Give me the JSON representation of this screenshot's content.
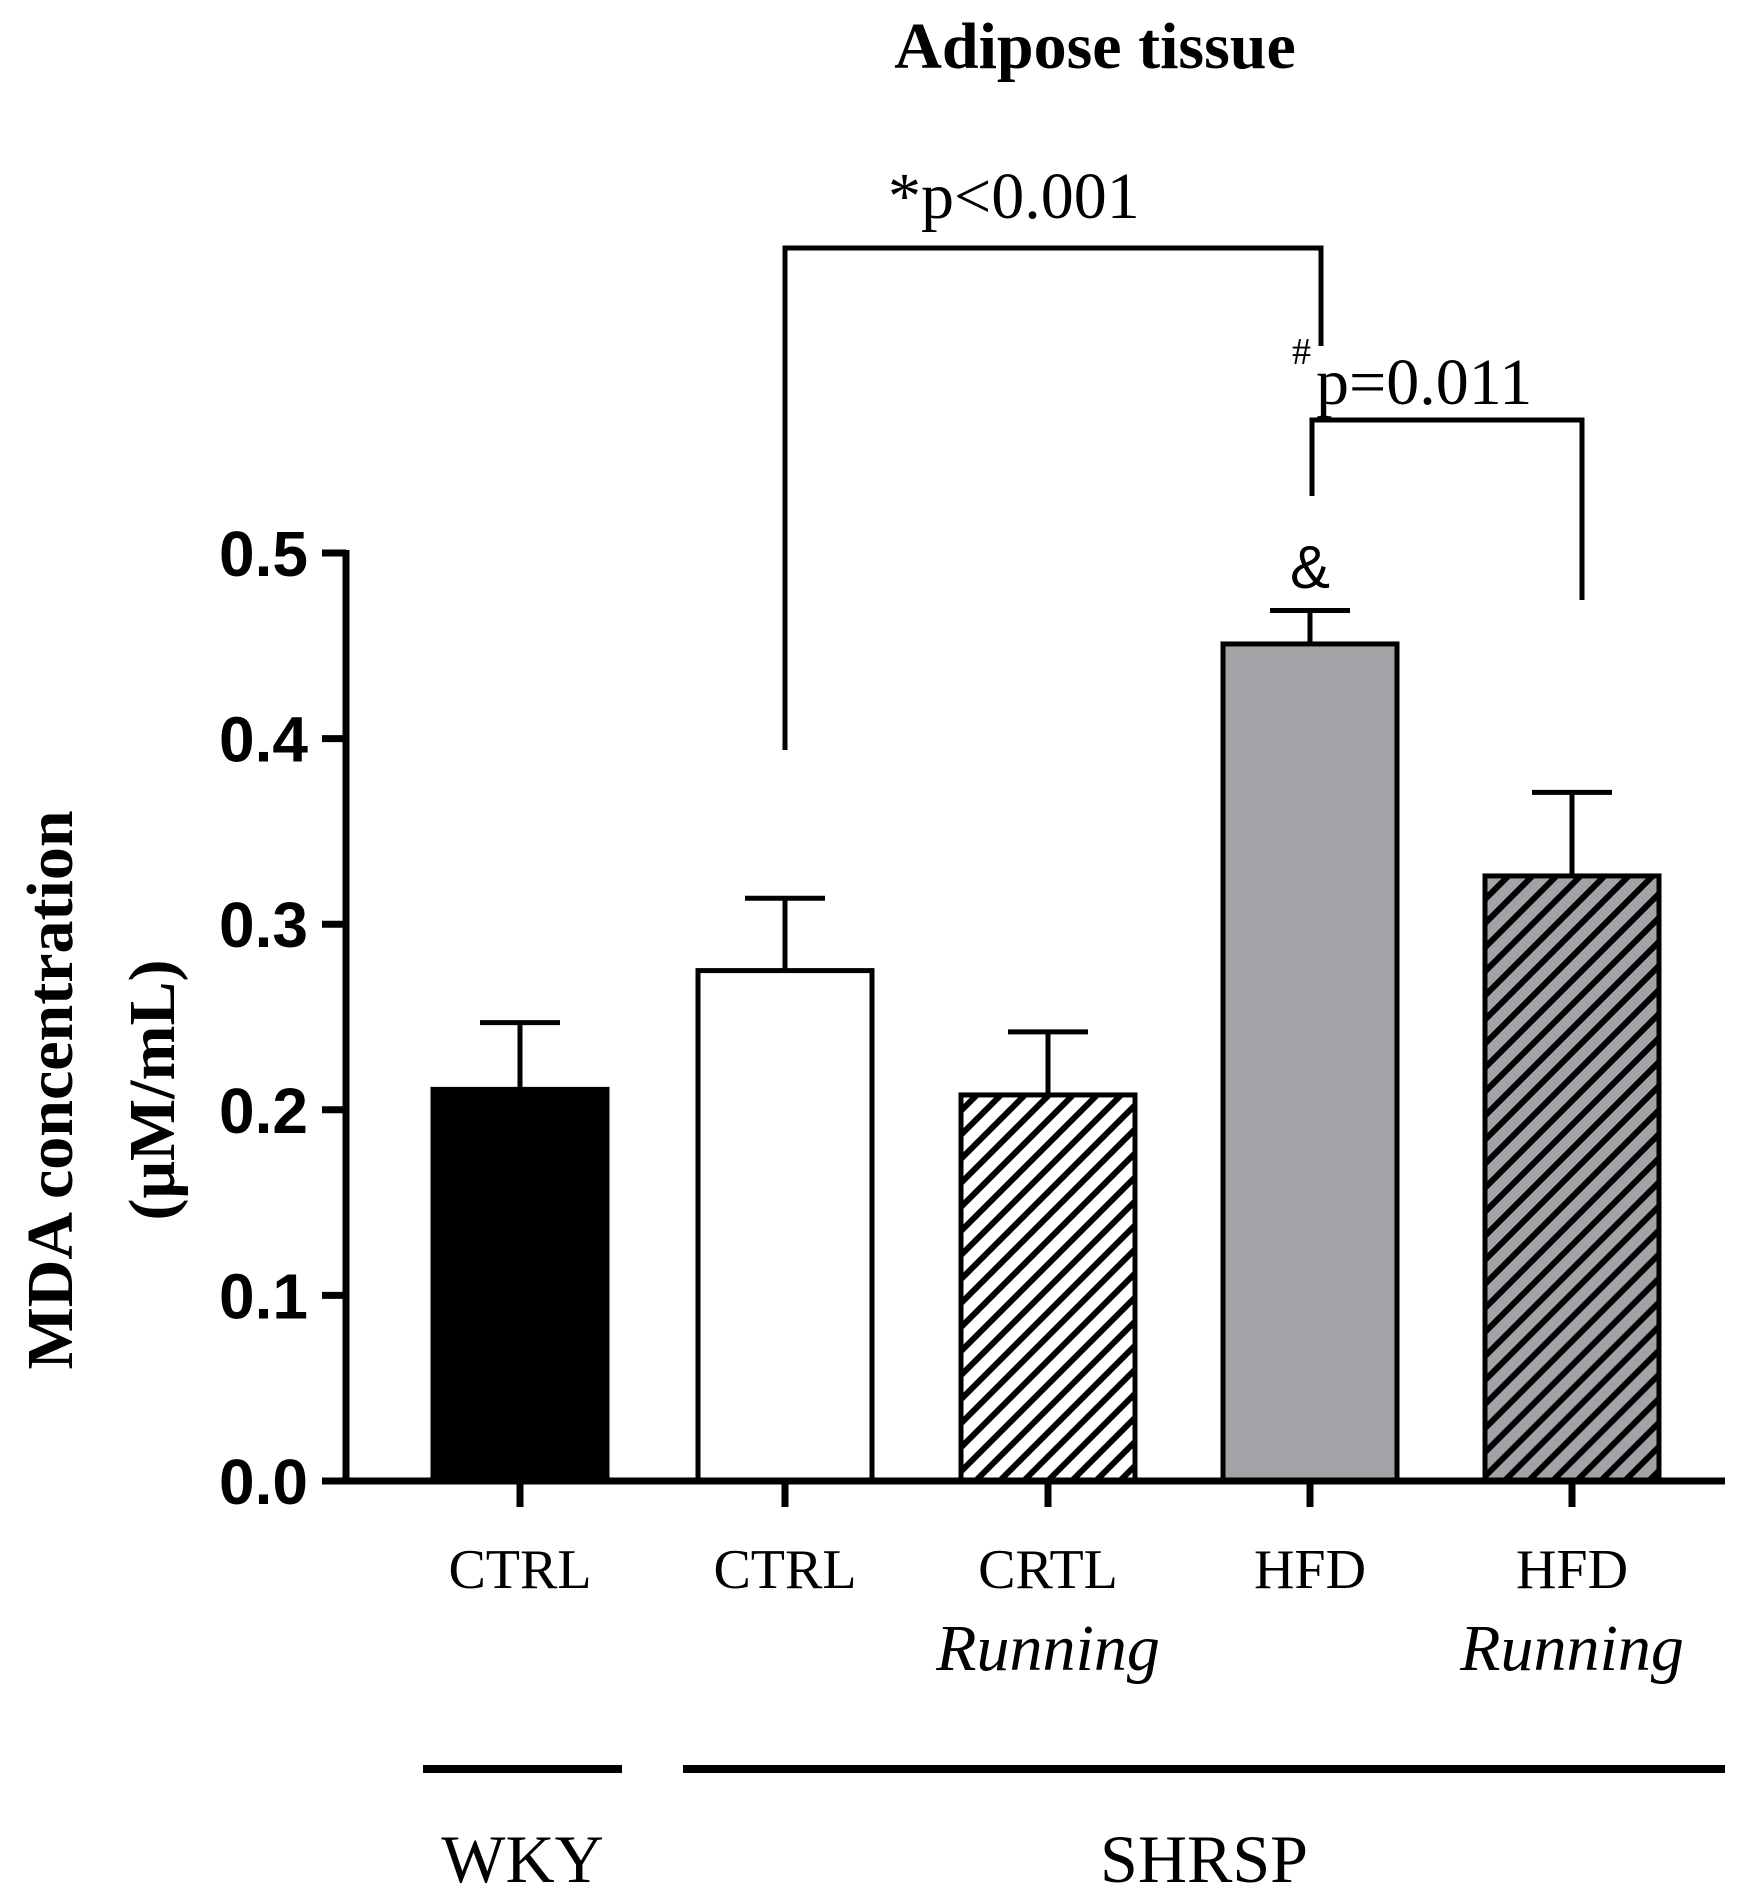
{
  "chart_data": {
    "type": "bar",
    "title": "Adipose tissue",
    "ylabel_line1": "MDA concentration",
    "ylabel_line2": "(μM/mL)",
    "xlabel": "",
    "ylim": [
      0,
      0.5
    ],
    "yticks": [
      "0.0",
      "0.1",
      "0.2",
      "0.3",
      "0.4",
      "0.5"
    ],
    "categories": [
      {
        "line1": "CTRL",
        "line2": "",
        "group": "WKY"
      },
      {
        "line1": "CTRL",
        "line2": "",
        "group": "SHRSP"
      },
      {
        "line1": "CRTL",
        "line2": "Running",
        "group": "SHRSP"
      },
      {
        "line1": "HFD",
        "line2": "",
        "group": "SHRSP"
      },
      {
        "line1": "HFD",
        "line2": "Running",
        "group": "SHRSP"
      }
    ],
    "values": [
      0.211,
      0.275,
      0.208,
      0.451,
      0.326
    ],
    "errors": [
      0.036,
      0.039,
      0.034,
      0.018,
      0.045
    ],
    "fills": [
      "#000000",
      "#ffffff",
      "#ffffff",
      "#a2a3a6",
      "#a2a3a6"
    ],
    "hatched": [
      false,
      false,
      true,
      false,
      true
    ],
    "groups": [
      {
        "label": "WKY",
        "first": 0,
        "last": 0
      },
      {
        "label": "SHRSP",
        "first": 1,
        "last": 4
      }
    ],
    "annotations": {
      "sig1_prefix": "*",
      "sig1_text": "p<0.001",
      "sig2_prefix": "#",
      "sig2_text": "p=0.011",
      "ampersand": "&"
    }
  }
}
